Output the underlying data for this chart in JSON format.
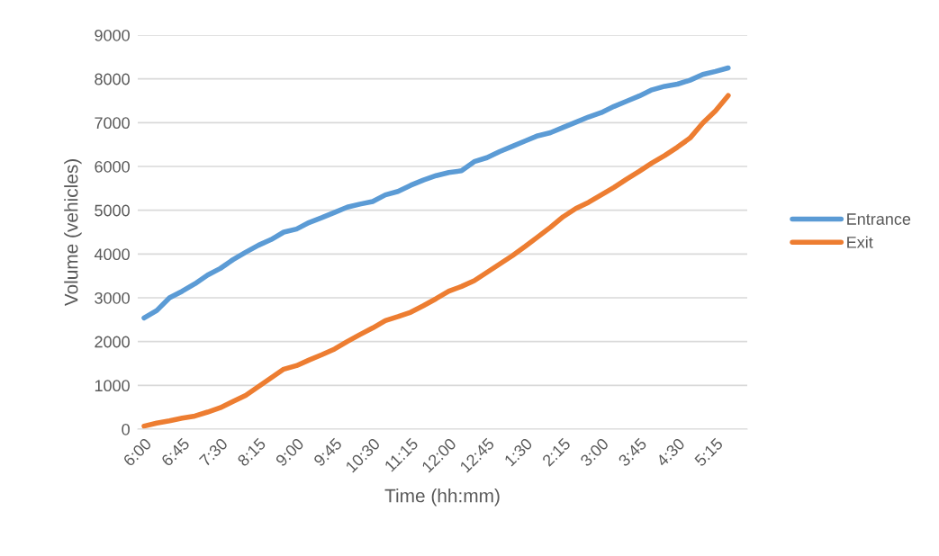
{
  "chart_data": {
    "type": "line",
    "xlabel": "Time (hh:mm)",
    "ylabel": "Volume (vehicles)",
    "categories": [
      "6:00",
      null,
      null,
      "6:45",
      null,
      null,
      "7:30",
      null,
      null,
      "8:15",
      null,
      null,
      "9:00",
      null,
      null,
      "9:45",
      null,
      null,
      "10:30",
      null,
      null,
      "11:15",
      null,
      null,
      "12:00",
      null,
      null,
      "12:45",
      null,
      null,
      "1:30",
      null,
      null,
      "2:15",
      null,
      null,
      "3:00",
      null,
      null,
      "3:45",
      null,
      null,
      "4:30",
      null,
      null,
      "5:15",
      null,
      null
    ],
    "series": [
      {
        "name": "Entrance",
        "color": "#5b9bd5",
        "values": [
          2540,
          2710,
          3000,
          3150,
          3320,
          3520,
          3670,
          3870,
          4040,
          4200,
          4330,
          4500,
          4570,
          4720,
          4830,
          4950,
          5070,
          5140,
          5200,
          5350,
          5430,
          5570,
          5690,
          5790,
          5860,
          5900,
          6110,
          6200,
          6340,
          6460,
          6580,
          6700,
          6770,
          6890,
          7010,
          7130,
          7230,
          7370,
          7490,
          7610,
          7750,
          7830,
          7880,
          7970,
          8100,
          8170,
          8250,
          null
        ]
      },
      {
        "name": "Exit",
        "color": "#ed7d31",
        "values": [
          70,
          140,
          190,
          250,
          300,
          390,
          490,
          630,
          770,
          970,
          1170,
          1370,
          1450,
          1580,
          1700,
          1830,
          2000,
          2160,
          2310,
          2480,
          2570,
          2670,
          2820,
          2980,
          3150,
          3260,
          3390,
          3580,
          3770,
          3960,
          4170,
          4390,
          4610,
          4850,
          5040,
          5180,
          5350,
          5520,
          5710,
          5890,
          6080,
          6250,
          6440,
          6650,
          6990,
          7270,
          7620,
          null
        ]
      }
    ],
    "ylim": [
      0,
      9000
    ],
    "yticks": [
      0,
      1000,
      2000,
      3000,
      4000,
      5000,
      6000,
      7000,
      8000,
      9000
    ],
    "grid": "y",
    "legend": "right",
    "marker": "none",
    "line_style": "solid"
  }
}
